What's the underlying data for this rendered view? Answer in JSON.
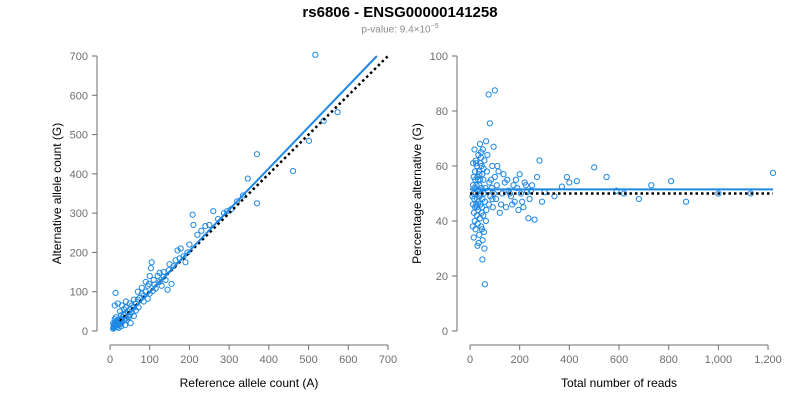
{
  "header": {
    "title": "rs6806 - ENSG00000141258",
    "pvalue_prefix": "p-value: 9.4×10",
    "pvalue_exp": "−5"
  },
  "colors": {
    "points": "#1e88e5",
    "fit_line": "#1e88e5",
    "reference_line": "#000000",
    "axis": "#6e6e6e"
  },
  "chart_data": [
    {
      "type": "scatter",
      "xlabel": "Reference allele count (A)",
      "ylabel": "Alternative allele count (G)",
      "xlim": [
        0,
        700
      ],
      "ylim": [
        0,
        700
      ],
      "xticks": [
        0,
        100,
        200,
        300,
        400,
        500,
        600,
        700
      ],
      "yticks": [
        0,
        100,
        200,
        300,
        400,
        500,
        600,
        700
      ],
      "xtick_labels": [
        "0",
        "100",
        "200",
        "300",
        "400",
        "500",
        "600",
        "700"
      ],
      "ytick_labels": [
        "0",
        "100",
        "200",
        "300",
        "400",
        "500",
        "600",
        "700"
      ],
      "grid": false,
      "fit_line": {
        "x": [
          8,
          672
        ],
        "y": [
          2,
          700
        ]
      },
      "reference_line": {
        "x": [
          25,
          700
        ],
        "y": [
          25,
          700
        ]
      },
      "points": [
        [
          517,
          703
        ],
        [
          573,
          557
        ],
        [
          370,
          450
        ],
        [
          347,
          388
        ],
        [
          370,
          325
        ],
        [
          461,
          407
        ],
        [
          501,
          484
        ],
        [
          538,
          535
        ],
        [
          305,
          310
        ],
        [
          287,
          300
        ],
        [
          260,
          305
        ],
        [
          240,
          267
        ],
        [
          208,
          296
        ],
        [
          210,
          270
        ],
        [
          220,
          245
        ],
        [
          200,
          220
        ],
        [
          178,
          210
        ],
        [
          170,
          205
        ],
        [
          165,
          180
        ],
        [
          160,
          165
        ],
        [
          150,
          170
        ],
        [
          148,
          155
        ],
        [
          135,
          150
        ],
        [
          125,
          148
        ],
        [
          120,
          140
        ],
        [
          110,
          130
        ],
        [
          105,
          175
        ],
        [
          103,
          160
        ],
        [
          100,
          140
        ],
        [
          98,
          120
        ],
        [
          95,
          115
        ],
        [
          90,
          100
        ],
        [
          85,
          90
        ],
        [
          80,
          95
        ],
        [
          75,
          85
        ],
        [
          70,
          80
        ],
        [
          65,
          70
        ],
        [
          60,
          60
        ],
        [
          55,
          65
        ],
        [
          50,
          55
        ],
        [
          45,
          50
        ],
        [
          40,
          60
        ],
        [
          38,
          45
        ],
        [
          35,
          40
        ],
        [
          32,
          35
        ],
        [
          30,
          30
        ],
        [
          28,
          40
        ],
        [
          26,
          25
        ],
        [
          24,
          30
        ],
        [
          22,
          20
        ],
        [
          20,
          28
        ],
        [
          18,
          22
        ],
        [
          16,
          18
        ],
        [
          15,
          25
        ],
        [
          14,
          15
        ],
        [
          13,
          12
        ],
        [
          12,
          20
        ],
        [
          11,
          10
        ],
        [
          10,
          16
        ],
        [
          10,
          8
        ],
        [
          9,
          12
        ],
        [
          8,
          6
        ],
        [
          8,
          20
        ],
        [
          12,
          30
        ],
        [
          15,
          35
        ],
        [
          18,
          10
        ],
        [
          20,
          15
        ],
        [
          25,
          18
        ],
        [
          30,
          22
        ],
        [
          35,
          28
        ],
        [
          40,
          32
        ],
        [
          45,
          38
        ],
        [
          50,
          42
        ],
        [
          55,
          48
        ],
        [
          14,
          97
        ],
        [
          12,
          65
        ],
        [
          20,
          70
        ],
        [
          30,
          65
        ],
        [
          40,
          75
        ],
        [
          50,
          70
        ],
        [
          60,
          80
        ],
        [
          70,
          100
        ],
        [
          80,
          110
        ],
        [
          90,
          125
        ],
        [
          115,
          108
        ],
        [
          130,
          115
        ],
        [
          140,
          130
        ],
        [
          155,
          120
        ],
        [
          145,
          105
        ],
        [
          25,
          50
        ],
        [
          35,
          55
        ],
        [
          42,
          28
        ],
        [
          48,
          35
        ],
        [
          52,
          20
        ],
        [
          38,
          15
        ],
        [
          28,
          12
        ],
        [
          22,
          8
        ],
        [
          60,
          38
        ],
        [
          65,
          52
        ],
        [
          72,
          60
        ],
        [
          85,
          75
        ],
        [
          95,
          82
        ],
        [
          100,
          95
        ],
        [
          108,
          102
        ],
        [
          112,
          118
        ],
        [
          125,
          125
        ],
        [
          135,
          138
        ],
        [
          175,
          185
        ],
        [
          185,
          190
        ],
        [
          190,
          175
        ],
        [
          195,
          200
        ],
        [
          230,
          255
        ],
        [
          250,
          270
        ],
        [
          272,
          285
        ],
        [
          295,
          305
        ],
        [
          320,
          330
        ],
        [
          335,
          345
        ]
      ]
    },
    {
      "type": "scatter",
      "xlabel": "Total number of reads",
      "ylabel": "Percentage alternative (G)",
      "xlim": [
        0,
        1220
      ],
      "ylim": [
        0,
        100
      ],
      "xticks": [
        0,
        200,
        400,
        600,
        800,
        1000,
        1200
      ],
      "yticks": [
        0,
        20,
        40,
        60,
        80,
        100
      ],
      "xtick_labels": [
        "0",
        "200",
        "400",
        "600",
        "800",
        "1,000",
        "1,200"
      ],
      "ytick_labels": [
        "0",
        "20",
        "40",
        "60",
        "80",
        "100"
      ],
      "grid": false,
      "fit_line": {
        "x": [
          0,
          1220
        ],
        "y": [
          51.5,
          51.5
        ]
      },
      "reference_line": {
        "x": [
          0,
          1220
        ],
        "y": [
          50,
          50
        ]
      },
      "points": [
        [
          1220,
          57.5
        ],
        [
          1130,
          50
        ],
        [
          1000,
          50
        ],
        [
          870,
          47
        ],
        [
          810,
          54.5
        ],
        [
          730,
          53
        ],
        [
          680,
          48
        ],
        [
          620,
          50
        ],
        [
          590,
          51
        ],
        [
          550,
          56
        ],
        [
          500,
          59.5
        ],
        [
          430,
          54.5
        ],
        [
          400,
          54
        ],
        [
          390,
          56
        ],
        [
          370,
          52.5
        ],
        [
          340,
          49
        ],
        [
          300,
          50.5
        ],
        [
          280,
          62
        ],
        [
          270,
          56
        ],
        [
          250,
          53
        ],
        [
          240,
          48
        ],
        [
          230,
          50.5
        ],
        [
          220,
          54
        ],
        [
          210,
          47
        ],
        [
          200,
          57
        ],
        [
          195,
          44
        ],
        [
          190,
          52
        ],
        [
          180,
          47
        ],
        [
          175,
          53
        ],
        [
          165,
          49
        ],
        [
          155,
          51
        ],
        [
          150,
          55
        ],
        [
          140,
          54
        ],
        [
          130,
          50
        ],
        [
          120,
          43
        ],
        [
          115,
          58
        ],
        [
          110,
          60
        ],
        [
          100,
          56
        ],
        [
          95,
          67
        ],
        [
          90,
          48
        ],
        [
          85,
          55
        ],
        [
          80,
          75.5
        ],
        [
          75,
          86
        ],
        [
          100,
          87.5
        ],
        [
          60,
          17
        ],
        [
          50,
          26
        ],
        [
          235,
          41
        ],
        [
          260,
          40.5
        ],
        [
          290,
          47
        ],
        [
          145,
          45
        ],
        [
          90,
          60
        ],
        [
          70,
          64
        ],
        [
          68,
          58
        ],
        [
          66,
          44
        ],
        [
          64,
          40
        ],
        [
          62,
          52
        ],
        [
          60,
          47
        ],
        [
          58,
          62
        ],
        [
          56,
          36
        ],
        [
          55,
          50
        ],
        [
          54,
          55
        ],
        [
          53,
          42
        ],
        [
          52,
          66
        ],
        [
          51,
          33
        ],
        [
          50,
          48
        ],
        [
          49,
          57
        ],
        [
          48,
          45
        ],
        [
          47,
          60
        ],
        [
          46,
          52
        ],
        [
          45,
          38
        ],
        [
          44,
          63
        ],
        [
          43,
          50
        ],
        [
          42,
          46
        ],
        [
          41,
          55
        ],
        [
          40,
          68
        ],
        [
          40,
          41
        ],
        [
          39,
          49
        ],
        [
          38,
          53
        ],
        [
          37,
          35
        ],
        [
          36,
          58
        ],
        [
          35,
          47
        ],
        [
          34,
          64
        ],
        [
          33,
          44
        ],
        [
          32,
          51
        ],
        [
          31,
          39
        ],
        [
          30,
          56
        ],
        [
          30,
          31
        ],
        [
          29,
          48
        ],
        [
          28,
          60
        ],
        [
          27,
          42
        ],
        [
          26,
          53
        ],
        [
          25,
          46
        ],
        [
          24,
          50
        ],
        [
          23,
          62
        ],
        [
          22,
          37
        ],
        [
          21,
          55
        ],
        [
          20,
          45
        ],
        [
          20,
          58
        ],
        [
          19,
          40
        ],
        [
          18,
          52
        ],
        [
          18,
          66
        ],
        [
          17,
          48
        ],
        [
          16,
          43
        ],
        [
          15,
          56
        ],
        [
          15,
          34
        ],
        [
          14,
          50
        ],
        [
          13,
          61
        ],
        [
          12,
          46
        ],
        [
          12,
          53
        ],
        [
          11,
          38
        ],
        [
          10,
          49
        ],
        [
          72,
          51
        ],
        [
          76,
          46
        ],
        [
          78,
          54
        ],
        [
          82,
          49
        ],
        [
          88,
          52
        ],
        [
          92,
          45
        ],
        [
          96,
          50
        ],
        [
          105,
          48
        ],
        [
          108,
          53
        ],
        [
          125,
          46
        ],
        [
          135,
          57
        ],
        [
          160,
          50
        ],
        [
          170,
          46
        ],
        [
          185,
          55
        ],
        [
          205,
          50
        ],
        [
          215,
          45
        ],
        [
          225,
          53
        ],
        [
          245,
          51
        ],
        [
          65,
          69
        ],
        [
          58,
          30
        ],
        [
          45,
          65
        ],
        [
          35,
          32
        ],
        [
          42,
          61
        ],
        [
          55,
          59
        ],
        [
          48,
          37
        ],
        [
          38,
          57
        ],
        [
          28,
          45
        ],
        [
          25,
          61
        ],
        [
          33,
          55
        ],
        [
          47,
          43
        ]
      ]
    }
  ]
}
